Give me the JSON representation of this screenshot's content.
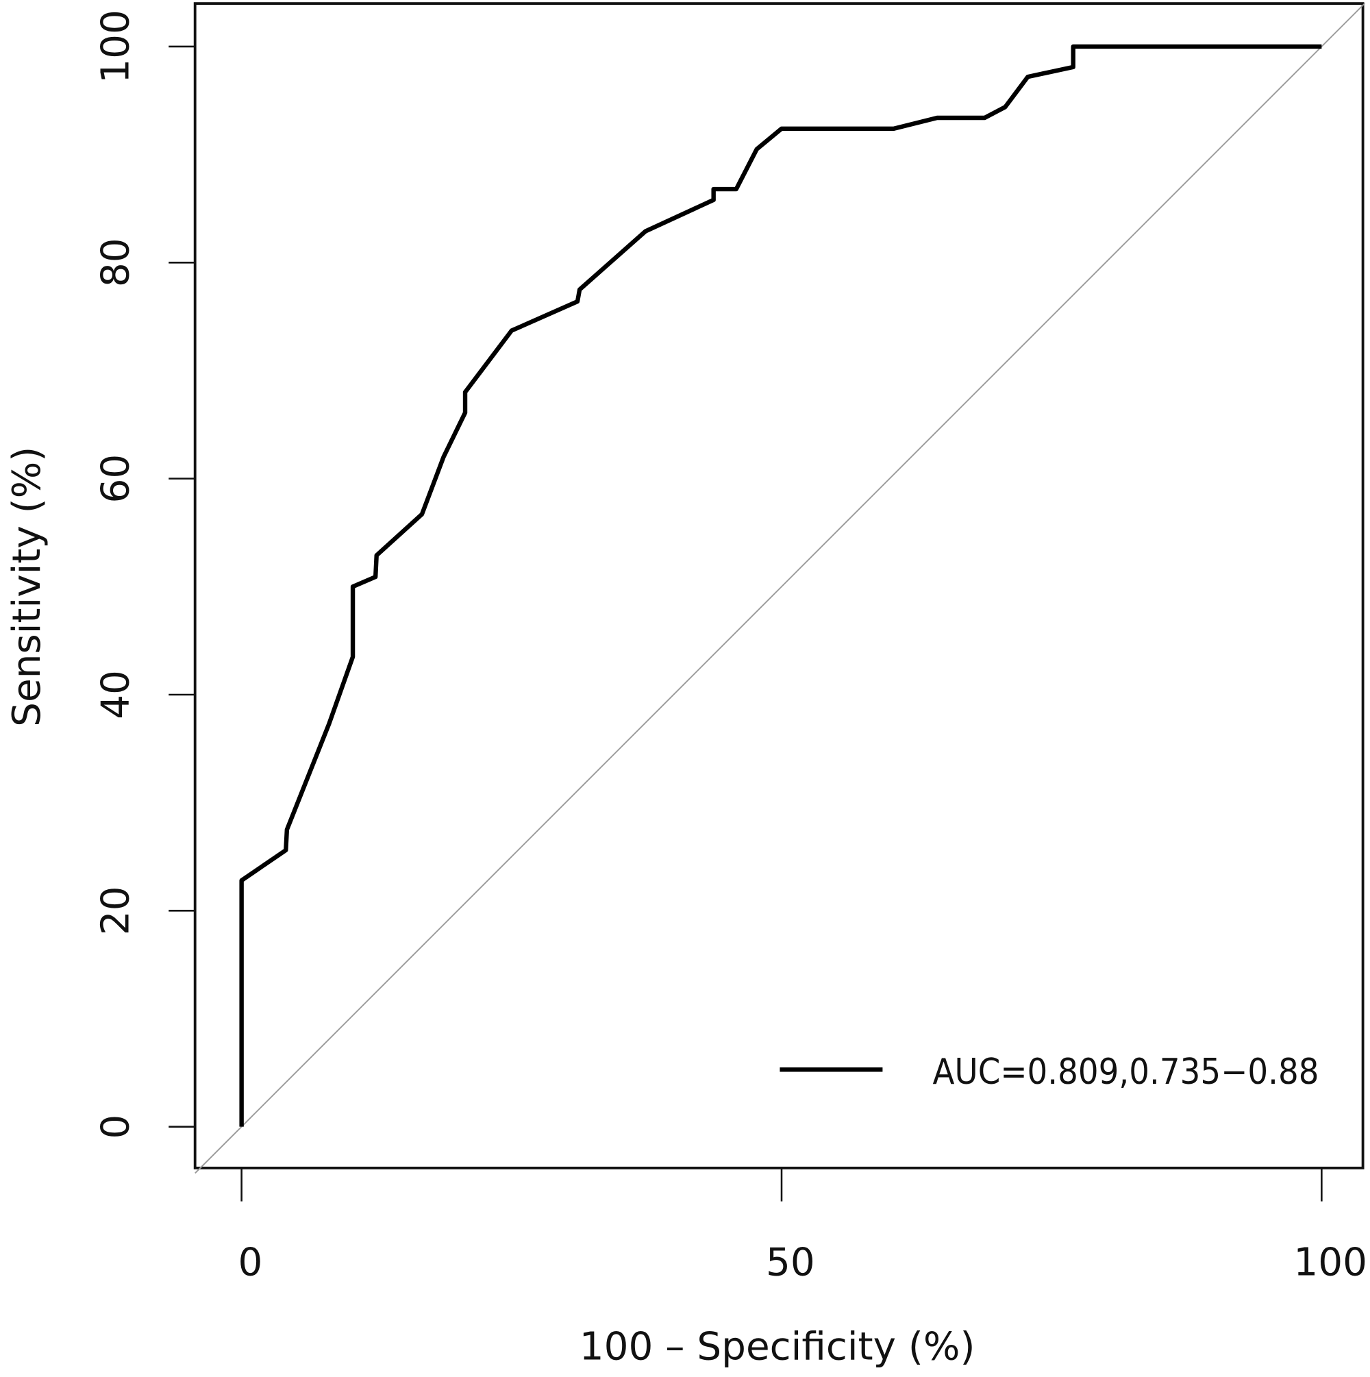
{
  "chart_data": {
    "type": "line",
    "title": "",
    "xlabel": "100 – Specificity (%)",
    "ylabel": "Sensitivity (%)",
    "xlim": [
      0,
      100
    ],
    "ylim": [
      0,
      100
    ],
    "xticks": [
      "0",
      "50",
      "100"
    ],
    "yticks": [
      "0",
      "20",
      "40",
      "60",
      "80",
      "100"
    ],
    "grid": false,
    "legend_position": "bottom-right",
    "series": [
      {
        "name": "AUC=0.809,0.735−0.88",
        "color": "#000000",
        "x": [
          0,
          0,
          4.1,
          4.2,
          8.1,
          10.3,
          10.3,
          12.4,
          12.5,
          16.7,
          18.7,
          20.7,
          20.7,
          25,
          31.1,
          31.3,
          37.4,
          43.7,
          43.7,
          45.8,
          47.7,
          50,
          60.4,
          64.4,
          68.8,
          70.7,
          72.8,
          77,
          77,
          100
        ],
        "y": [
          0,
          22.8,
          25.6,
          27.5,
          37.3,
          43.5,
          50,
          50.9,
          52.9,
          56.7,
          62,
          66.1,
          68,
          73.7,
          76.4,
          77.5,
          82.9,
          85.8,
          86.8,
          86.8,
          90.5,
          92.4,
          92.4,
          93.4,
          93.4,
          94.4,
          97.2,
          98.1,
          100,
          100
        ]
      }
    ],
    "reference_line": {
      "x": [
        0,
        100
      ],
      "y": [
        0,
        100
      ],
      "color": "#999999"
    }
  }
}
